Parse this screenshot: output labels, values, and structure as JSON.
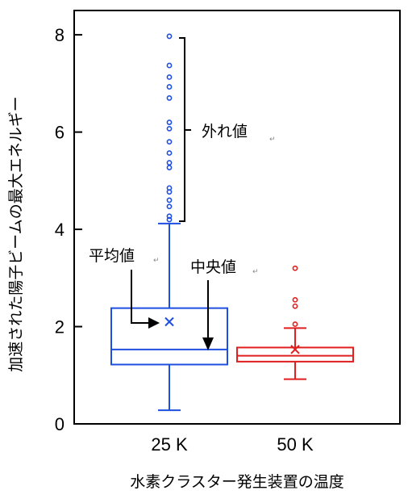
{
  "chart_data": {
    "type": "box",
    "xlabel": "水素クラスター発生装置の温度",
    "ylabel": "加速された陽子ビームの最大エネルギー",
    "ylim": [
      0,
      8.5
    ],
    "yticks": [
      0,
      2,
      4,
      6,
      8
    ],
    "grid": false,
    "categories": [
      "25 K",
      "50 K"
    ],
    "boxes": [
      {
        "category": "25 K",
        "color": "#1f4fe0",
        "whisker_low": 0.28,
        "q1": 1.22,
        "median": 1.53,
        "q3": 2.38,
        "whisker_high": 4.12,
        "mean": 2.1,
        "outliers": [
          7.97,
          7.37,
          7.13,
          6.93,
          6.7,
          6.2,
          6.07,
          5.8,
          5.57,
          5.37,
          5.27,
          4.85,
          4.77,
          4.6,
          4.47,
          4.27,
          4.2
        ]
      },
      {
        "category": "50 K",
        "color": "#e01f1f",
        "whisker_low": 0.92,
        "q1": 1.28,
        "median": 1.4,
        "q3": 1.57,
        "whisker_high": 1.97,
        "mean": 1.53,
        "outliers": [
          2.05,
          2.42,
          2.55,
          3.2
        ]
      }
    ],
    "annotations": {
      "outliers": "外れ値",
      "mean": "平均値",
      "median": "中央値",
      "return_mark": "↵"
    }
  }
}
